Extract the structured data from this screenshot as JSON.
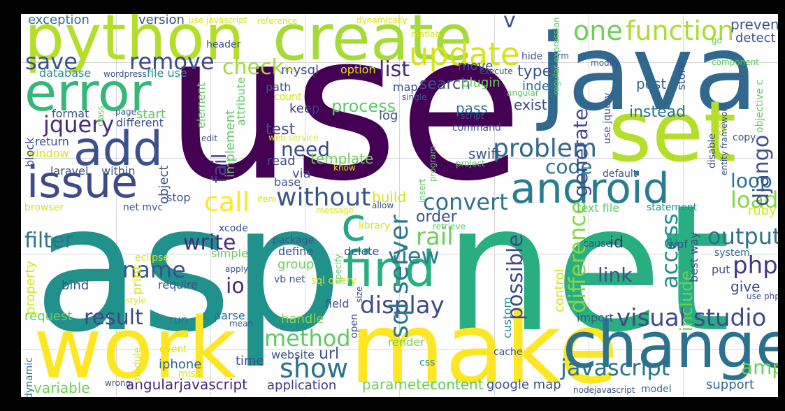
{
  "colors": {
    "background": "#000000",
    "plot_background": "#ffffff",
    "palette": [
      "#440154",
      "#472d7b",
      "#3b528b",
      "#2c728e",
      "#21918c",
      "#28ae80",
      "#5ec962",
      "#addc30",
      "#fde725"
    ]
  },
  "words": [
    {
      "text": "use",
      "color": "#440154"
    },
    {
      "text": "asp",
      "color": "#21918c"
    },
    {
      "text": "net",
      "color": "#28ae80"
    },
    {
      "text": "java",
      "color": "#31688e"
    },
    {
      "text": "make",
      "color": "#fde725"
    },
    {
      "text": "work",
      "color": "#fde725"
    },
    {
      "text": "change",
      "color": "#2c728e"
    },
    {
      "text": "set",
      "color": "#b5de2b"
    },
    {
      "text": "create",
      "color": "#a5db36"
    },
    {
      "text": "python",
      "color": "#b5de2b"
    },
    {
      "text": "error",
      "color": "#35b779"
    },
    {
      "text": "android",
      "color": "#287c8e"
    },
    {
      "text": "find",
      "color": "#28ae80"
    },
    {
      "text": "issue",
      "color": "#3e4a89"
    },
    {
      "text": "add",
      "color": "#3b528b"
    },
    {
      "text": "update",
      "color": "#d8e219"
    },
    {
      "text": "visual studio",
      "color": "#3e4a89"
    },
    {
      "text": "problem",
      "color": "#31688e"
    },
    {
      "text": "javascript",
      "color": "#2c728e"
    },
    {
      "text": "display",
      "color": "#3e4a89"
    },
    {
      "text": "function",
      "color": "#addc30"
    },
    {
      "text": "show",
      "color": "#2c728e"
    },
    {
      "text": "c",
      "color": "#22a884"
    },
    {
      "text": "without",
      "color": "#39568c"
    },
    {
      "text": "one",
      "color": "#6ece58"
    },
    {
      "text": "php",
      "color": "#443983"
    },
    {
      "text": "method",
      "color": "#5ec962"
    },
    {
      "text": "check",
      "color": "#a0da39"
    },
    {
      "text": "save",
      "color": "#3b528b"
    },
    {
      "text": "remove",
      "color": "#3e4a89"
    },
    {
      "text": "list",
      "color": "#482878"
    },
    {
      "text": "call",
      "color": "#fde725"
    },
    {
      "text": "convert",
      "color": "#2c728e"
    },
    {
      "text": "sql server",
      "color": "#2a788e"
    },
    {
      "text": "jquery",
      "color": "#472d7b"
    },
    {
      "text": "rail",
      "color": "#6ece58"
    },
    {
      "text": "view",
      "color": "#287c8e"
    },
    {
      "text": "output",
      "color": "#2c728e"
    },
    {
      "text": "load",
      "color": "#86d549"
    },
    {
      "text": "loop",
      "color": "#2c728e"
    },
    {
      "text": "name",
      "color": "#3b528b"
    },
    {
      "text": "result",
      "color": "#3e4a89"
    },
    {
      "text": "filter",
      "color": "#2c728e"
    },
    {
      "text": "write",
      "color": "#472d7b"
    },
    {
      "text": "link",
      "color": "#3b528b"
    },
    {
      "text": "code",
      "color": "#2c728e"
    },
    {
      "text": "need",
      "color": "#3e4a89"
    },
    {
      "text": "io",
      "color": "#472d7b"
    },
    {
      "text": "amp",
      "color": "#6ece58"
    },
    {
      "text": "access",
      "color": "#21918c"
    },
    {
      "text": "django",
      "color": "#3b528b"
    },
    {
      "text": "difference",
      "color": "#86d549"
    },
    {
      "text": "possible",
      "color": "#3e4a89"
    },
    {
      "text": "generate",
      "color": "#3e4a89"
    },
    {
      "text": "fail",
      "color": "#3e4a89"
    },
    {
      "text": "id",
      "color": "#472d7b"
    },
    {
      "text": "give",
      "color": "#3e4a89"
    },
    {
      "text": "include",
      "color": "#6ece58"
    },
    {
      "text": "angularjavascript",
      "color": "#482878"
    },
    {
      "text": "content",
      "color": "#5ec962"
    },
    {
      "text": "google map",
      "color": "#3b528b"
    },
    {
      "text": "parameter",
      "color": "#6ece58"
    },
    {
      "text": "variable",
      "color": "#6ece58"
    },
    {
      "text": "application",
      "color": "#443983"
    },
    {
      "text": "iphone",
      "color": "#31688e"
    },
    {
      "text": "time",
      "color": "#3b528b"
    },
    {
      "text": "website",
      "color": "#3b528b"
    },
    {
      "text": "url",
      "color": "#3b528b"
    },
    {
      "text": "support",
      "color": "#31688e"
    },
    {
      "text": "request",
      "color": "#6ece58"
    },
    {
      "text": "run",
      "color": "#2c728e"
    },
    {
      "text": "parse",
      "color": "#2c728e"
    },
    {
      "text": "handle",
      "color": "#86d549"
    },
    {
      "text": "render",
      "color": "#6ece58"
    },
    {
      "text": "bind",
      "color": "#3b528b"
    },
    {
      "text": "require",
      "color": "#3b528b"
    },
    {
      "text": "group",
      "color": "#6ece58"
    },
    {
      "text": "define",
      "color": "#3b528b"
    },
    {
      "text": "delete",
      "color": "#3b528b"
    },
    {
      "text": "simple",
      "color": "#6ece58"
    },
    {
      "text": "print",
      "color": "#d8e219"
    },
    {
      "text": "eclipse",
      "color": "#d8e219"
    },
    {
      "text": "property",
      "color": "#d8e219"
    },
    {
      "text": "order",
      "color": "#3b528b"
    },
    {
      "text": "build",
      "color": "#d8e219"
    },
    {
      "text": "search",
      "color": "#3b528b"
    },
    {
      "text": "plugin",
      "color": "#6ece58"
    },
    {
      "text": "v",
      "color": "#3b528b"
    },
    {
      "text": "type",
      "color": "#3b528b"
    },
    {
      "text": "index",
      "color": "#2c728e"
    },
    {
      "text": "exist",
      "color": "#3e4a89"
    },
    {
      "text": "instead",
      "color": "#2c728e"
    },
    {
      "text": "post",
      "color": "#31688e"
    },
    {
      "text": "prevent",
      "color": "#3b528b"
    },
    {
      "text": "detect",
      "color": "#3b528b"
    },
    {
      "text": "version",
      "color": "#3b528b"
    },
    {
      "text": "exception",
      "color": "#2c728e"
    },
    {
      "text": "database",
      "color": "#21918c"
    },
    {
      "text": "file use",
      "color": "#21918c"
    },
    {
      "text": "mysql",
      "color": "#3e4a89"
    },
    {
      "text": "move",
      "color": "#3b528b"
    },
    {
      "text": "process",
      "color": "#5ec962"
    },
    {
      "text": "keep",
      "color": "#443983"
    },
    {
      "text": "test",
      "color": "#3e4a89"
    },
    {
      "text": "template",
      "color": "#6ece58"
    },
    {
      "text": "read",
      "color": "#3b528b"
    },
    {
      "text": "via",
      "color": "#3b528b"
    },
    {
      "text": "base",
      "color": "#3b528b"
    },
    {
      "text": "swift",
      "color": "#3b528b"
    },
    {
      "text": "pass",
      "color": "#2c728e"
    },
    {
      "text": "log",
      "color": "#3b528b"
    },
    {
      "text": "map",
      "color": "#3b528b"
    },
    {
      "text": "path",
      "color": "#3b528b"
    },
    {
      "text": "count",
      "color": "#d8e219"
    },
    {
      "text": "format",
      "color": "#3b528b"
    },
    {
      "text": "different",
      "color": "#3b528b"
    },
    {
      "text": "start",
      "color": "#5ec962"
    },
    {
      "text": "return",
      "color": "#3b528b"
    },
    {
      "text": "window",
      "color": "#d8e219"
    },
    {
      "text": "laravel",
      "color": "#3b528b"
    },
    {
      "text": "within",
      "color": "#3b528b"
    },
    {
      "text": "object",
      "color": "#3b528b"
    },
    {
      "text": "stop",
      "color": "#3b528b"
    },
    {
      "text": "net mvc",
      "color": "#3b528b"
    },
    {
      "text": "browser",
      "color": "#d8e219"
    },
    {
      "text": "xcode",
      "color": "#3b528b"
    },
    {
      "text": "package",
      "color": "#3b528b"
    },
    {
      "text": "sort",
      "color": "#d8e219"
    },
    {
      "text": "store",
      "color": "#3b528b"
    },
    {
      "text": "copy",
      "color": "#3b528b"
    },
    {
      "text": "default",
      "color": "#3b528b"
    },
    {
      "text": "text file",
      "color": "#5ec962"
    },
    {
      "text": "statement",
      "color": "#21918c"
    },
    {
      "text": "ruby",
      "color": "#d8e219"
    },
    {
      "text": "cause",
      "color": "#3b528b"
    },
    {
      "text": "wpf",
      "color": "#3b528b"
    },
    {
      "text": "best way",
      "color": "#3b528b"
    },
    {
      "text": "system",
      "color": "#2c728e"
    },
    {
      "text": "put",
      "color": "#3b528b"
    },
    {
      "text": "use php",
      "color": "#3b528b"
    },
    {
      "text": "import",
      "color": "#3b528b"
    },
    {
      "text": "custom",
      "color": "#21918c"
    },
    {
      "text": "control",
      "color": "#d8e219"
    },
    {
      "text": "cache",
      "color": "#3b528b"
    },
    {
      "text": "css",
      "color": "#21918c"
    },
    {
      "text": "model",
      "color": "#2c728e"
    },
    {
      "text": "nodejavascript",
      "color": "#3b528b"
    },
    {
      "text": "module",
      "color": "#d8e219"
    },
    {
      "text": "event",
      "color": "#d8e219"
    },
    {
      "text": "miss",
      "color": "#d8e219"
    },
    {
      "text": "wrong",
      "color": "#3b528b"
    },
    {
      "text": "dynamic",
      "color": "#2c728e"
    },
    {
      "text": "style",
      "color": "#d8e219"
    },
    {
      "text": "vb net",
      "color": "#3b528b"
    },
    {
      "text": "mean",
      "color": "#3b528b"
    },
    {
      "text": "apply",
      "color": "#3b528b"
    },
    {
      "text": "field",
      "color": "#3b528b"
    },
    {
      "text": "open",
      "color": "#3b528b"
    },
    {
      "text": "size",
      "color": "#3b528b"
    },
    {
      "text": "specify",
      "color": "#5ec962"
    },
    {
      "text": "sql query",
      "color": "#d8e219"
    },
    {
      "text": "library",
      "color": "#d8e219"
    },
    {
      "text": "retrieve",
      "color": "#5ec962"
    },
    {
      "text": "allow",
      "color": "#3b528b"
    },
    {
      "text": "message",
      "color": "#d8e219"
    },
    {
      "text": "item",
      "color": "#d8e219"
    },
    {
      "text": "know",
      "color": "#d8e219"
    },
    {
      "text": "insert",
      "color": "#5ec962"
    },
    {
      "text": "program",
      "color": "#5ec962"
    },
    {
      "text": "project",
      "color": "#5ec962"
    },
    {
      "text": "command",
      "color": "#3b528b"
    },
    {
      "text": "script",
      "color": "#3b528b"
    },
    {
      "text": "web service",
      "color": "#d8e219"
    },
    {
      "text": "edit",
      "color": "#3b528b"
    },
    {
      "text": "element",
      "color": "#5ec962"
    },
    {
      "text": "attribute",
      "color": "#5ec962"
    },
    {
      "text": "implement",
      "color": "#5ec962"
    },
    {
      "text": "block",
      "color": "#3b528b"
    },
    {
      "text": "class",
      "color": "#5ec962"
    },
    {
      "text": "page",
      "color": "#3b528b"
    },
    {
      "text": "wordpress",
      "color": "#3b528b"
    },
    {
      "text": "header",
      "color": "#3b528b"
    },
    {
      "text": "fix",
      "color": "#d8e219"
    },
    {
      "text": "option",
      "color": "#d8e219"
    },
    {
      "text": "single",
      "color": "#3b528b"
    },
    {
      "text": "matlab",
      "color": "#d8e219"
    },
    {
      "text": "reference",
      "color": "#d8e219"
    },
    {
      "text": "use javascript",
      "color": "#d8e219"
    },
    {
      "text": "dynamically",
      "color": "#d8e219"
    },
    {
      "text": "execute",
      "color": "#3b528b"
    },
    {
      "text": "hide",
      "color": "#3b528b"
    },
    {
      "text": "form",
      "color": "#3b528b"
    },
    {
      "text": "regular expression",
      "color": "#5ec962"
    },
    {
      "text": "angular",
      "color": "#5ec962"
    },
    {
      "text": "modify",
      "color": "#3b528b"
    },
    {
      "text": "component",
      "color": "#5ec962"
    },
    {
      "text": "go",
      "color": "#5ec962"
    },
    {
      "text": "use jquery",
      "color": "#3b528b"
    },
    {
      "text": "disable",
      "color": "#3b528b"
    },
    {
      "text": "entity framework",
      "color": "#3b528b"
    },
    {
      "text": "objective c",
      "color": "#5ec962"
    }
  ]
}
